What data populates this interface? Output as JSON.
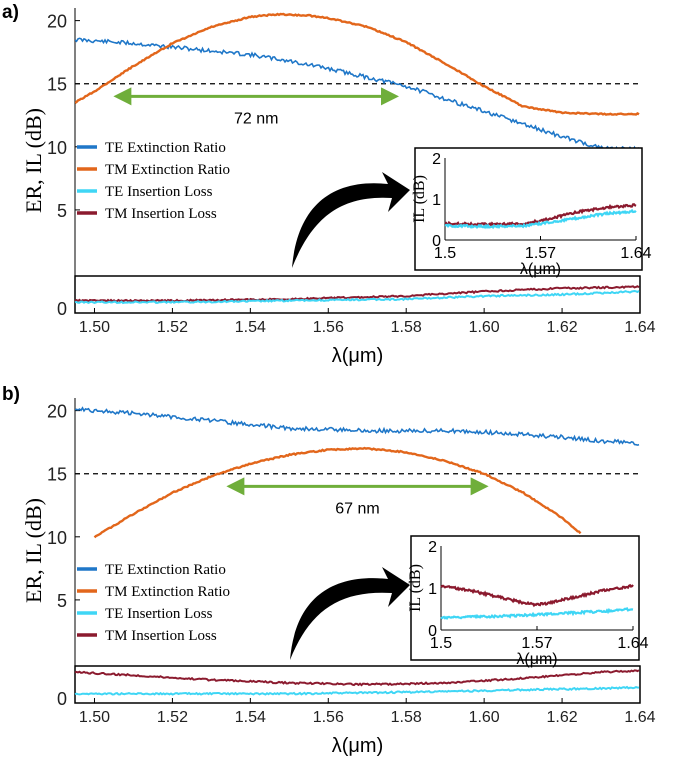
{
  "chart_data": [
    {
      "type": "line",
      "panel_label": "a)",
      "xlabel": "λ(μm)",
      "ylabel": "ER, IL (dB)",
      "xlim": [
        1.495,
        1.64
      ],
      "ylim": [
        0,
        21
      ],
      "x_ticks": [
        "1.50",
        "1.52",
        "1.54",
        "1.56",
        "1.58",
        "1.60",
        "1.62",
        "1.64"
      ],
      "y_ticks": [
        "0",
        "5",
        "10",
        "15",
        "20"
      ],
      "reference_line": {
        "y": 15,
        "style": "dashed"
      },
      "bandwidth_annotation": {
        "label": "72 nm",
        "x_start": 1.505,
        "x_end": 1.578,
        "y": 14.0
      },
      "legend": {
        "placement": "middle-left",
        "entries": [
          {
            "name": "TE Extinction Ratio",
            "color": "#1f77c8"
          },
          {
            "name": "TM Extinction Ratio",
            "color": "#e2661b"
          },
          {
            "name": "TE Insertion Loss",
            "color": "#3fd6f5"
          },
          {
            "name": "TM Insertion Loss",
            "color": "#8b1a2e"
          }
        ]
      },
      "series": [
        {
          "name": "TE Extinction Ratio",
          "color": "#1f77c8",
          "x": [
            1.495,
            1.5,
            1.51,
            1.52,
            1.53,
            1.54,
            1.55,
            1.56,
            1.57,
            1.58,
            1.59,
            1.6,
            1.61,
            1.62,
            1.63,
            1.64
          ],
          "y": [
            18.5,
            18.4,
            18.2,
            17.9,
            17.6,
            17.3,
            16.8,
            16.2,
            15.5,
            14.8,
            13.8,
            12.8,
            11.8,
            10.8,
            9.9,
            9.8
          ]
        },
        {
          "name": "TM Extinction Ratio",
          "color": "#e2661b",
          "x": [
            1.495,
            1.5,
            1.51,
            1.52,
            1.53,
            1.54,
            1.547,
            1.555,
            1.56,
            1.57,
            1.58,
            1.59,
            1.6,
            1.61,
            1.62,
            1.63,
            1.64
          ],
          "y": [
            13.5,
            14.4,
            16.4,
            18.2,
            19.5,
            20.3,
            20.5,
            20.4,
            20.2,
            19.5,
            18.3,
            16.6,
            14.8,
            13.2,
            12.7,
            12.6,
            12.6
          ]
        },
        {
          "name": "TE Insertion Loss",
          "color": "#3fd6f5",
          "x": [
            1.495,
            1.52,
            1.55,
            1.58,
            1.6,
            1.62,
            1.64
          ],
          "y": [
            0.35,
            0.35,
            0.4,
            0.45,
            0.55,
            0.6,
            0.7
          ]
        },
        {
          "name": "TM Insertion Loss",
          "color": "#8b1a2e",
          "x": [
            1.495,
            1.52,
            1.55,
            1.58,
            1.6,
            1.62,
            1.64
          ],
          "y": [
            0.4,
            0.4,
            0.45,
            0.55,
            0.7,
            0.8,
            0.85
          ]
        }
      ],
      "inset": {
        "xlabel": "λ(μm)",
        "ylabel": "IL (dB)",
        "xlim": [
          1.5,
          1.64
        ],
        "ylim": [
          0,
          2
        ],
        "x_ticks": [
          "1.5",
          "1.57",
          "1.64"
        ],
        "y_ticks": [
          "0",
          "1",
          "2"
        ],
        "series": [
          {
            "name": "TE Insertion Loss",
            "color": "#3fd6f5",
            "x": [
              1.5,
              1.53,
              1.56,
              1.58,
              1.6,
              1.62,
              1.64
            ],
            "y": [
              0.35,
              0.33,
              0.35,
              0.45,
              0.55,
              0.65,
              0.7
            ]
          },
          {
            "name": "TM Insertion Loss",
            "color": "#8b1a2e",
            "x": [
              1.5,
              1.53,
              1.56,
              1.58,
              1.6,
              1.62,
              1.64
            ],
            "y": [
              0.4,
              0.38,
              0.4,
              0.55,
              0.7,
              0.8,
              0.85
            ]
          }
        ]
      }
    },
    {
      "type": "line",
      "panel_label": "b)",
      "xlabel": "λ(μm)",
      "ylabel": "ER, IL (dB)",
      "xlim": [
        1.495,
        1.64
      ],
      "ylim": [
        0,
        21
      ],
      "x_ticks": [
        "1.50",
        "1.52",
        "1.54",
        "1.56",
        "1.58",
        "1.60",
        "1.62",
        "1.64"
      ],
      "y_ticks": [
        "0",
        "5",
        "10",
        "15",
        "20"
      ],
      "reference_line": {
        "y": 15,
        "style": "dashed"
      },
      "bandwidth_annotation": {
        "label": "67 nm",
        "x_start": 1.534,
        "x_end": 1.601,
        "y": 14.0
      },
      "legend": {
        "placement": "middle-left",
        "entries": [
          {
            "name": "TE Extinction Ratio",
            "color": "#1f77c8"
          },
          {
            "name": "TM Extinction Ratio",
            "color": "#e2661b"
          },
          {
            "name": "TE Insertion Loss",
            "color": "#3fd6f5"
          },
          {
            "name": "TM Insertion Loss",
            "color": "#8b1a2e"
          }
        ]
      },
      "series": [
        {
          "name": "TE Extinction Ratio",
          "color": "#1f77c8",
          "x": [
            1.495,
            1.5,
            1.51,
            1.52,
            1.53,
            1.54,
            1.55,
            1.56,
            1.57,
            1.58,
            1.59,
            1.6,
            1.61,
            1.62,
            1.63,
            1.64
          ],
          "y": [
            20.2,
            20.0,
            19.8,
            19.5,
            19.2,
            18.9,
            18.6,
            18.5,
            18.4,
            18.4,
            18.4,
            18.3,
            18.1,
            17.9,
            17.6,
            17.4
          ]
        },
        {
          "name": "TM Extinction Ratio",
          "color": "#e2661b",
          "x": [
            1.5,
            1.51,
            1.52,
            1.53,
            1.54,
            1.55,
            1.56,
            1.57,
            1.58,
            1.59,
            1.6,
            1.61,
            1.62,
            1.625
          ],
          "y": [
            10.0,
            11.8,
            13.5,
            14.8,
            15.8,
            16.5,
            16.9,
            17.0,
            16.7,
            16.0,
            15.0,
            13.5,
            11.5,
            10.2
          ]
        },
        {
          "name": "TE Insertion Loss",
          "color": "#3fd6f5",
          "x": [
            1.495,
            1.52,
            1.55,
            1.58,
            1.6,
            1.62,
            1.64
          ],
          "y": [
            0.3,
            0.3,
            0.3,
            0.35,
            0.4,
            0.45,
            0.5
          ]
        },
        {
          "name": "TM Insertion Loss",
          "color": "#8b1a2e",
          "x": [
            1.495,
            1.51,
            1.53,
            1.55,
            1.57,
            1.59,
            1.61,
            1.63,
            1.64
          ],
          "y": [
            1.0,
            0.9,
            0.75,
            0.65,
            0.6,
            0.65,
            0.8,
            1.0,
            1.05
          ]
        }
      ],
      "inset": {
        "xlabel": "λ(μm)",
        "ylabel": "IL (dB)",
        "xlim": [
          1.5,
          1.64
        ],
        "ylim": [
          0,
          2
        ],
        "x_ticks": [
          "1.5",
          "1.57",
          "1.64"
        ],
        "y_ticks": [
          "0",
          "1",
          "2"
        ],
        "series": [
          {
            "name": "TE Insertion Loss",
            "color": "#3fd6f5",
            "x": [
              1.5,
              1.53,
              1.56,
              1.59,
              1.62,
              1.64
            ],
            "y": [
              0.3,
              0.32,
              0.35,
              0.4,
              0.45,
              0.5
            ]
          },
          {
            "name": "TM Insertion Loss",
            "color": "#8b1a2e",
            "x": [
              1.5,
              1.52,
              1.54,
              1.56,
              1.57,
              1.58,
              1.6,
              1.62,
              1.64
            ],
            "y": [
              1.05,
              0.95,
              0.8,
              0.65,
              0.6,
              0.65,
              0.8,
              0.95,
              1.05
            ]
          }
        ]
      }
    }
  ]
}
